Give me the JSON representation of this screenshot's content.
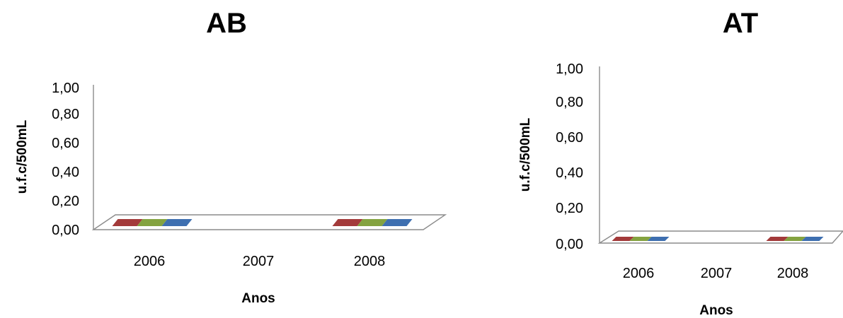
{
  "chart_data": [
    {
      "type": "bar",
      "title": "AB",
      "xlabel": "Anos",
      "ylabel": "u.f.c/500mL",
      "ylim": [
        0,
        1
      ],
      "yticks": [
        "0,00",
        "0,20",
        "0,40",
        "0,60",
        "0,80",
        "1,00"
      ],
      "categories": [
        "2006",
        "2007",
        "2008"
      ],
      "grid": false,
      "series": [
        {
          "values": [
            0,
            null,
            0
          ],
          "color": "#a33a3a"
        },
        {
          "values": [
            0,
            null,
            0
          ],
          "color": "#84a340"
        },
        {
          "values": [
            0,
            null,
            0
          ],
          "color": "#3e6fb0"
        }
      ]
    },
    {
      "type": "bar",
      "title": "AT",
      "xlabel": "Anos",
      "ylabel": "u.f.c/500mL",
      "ylim": [
        0,
        1
      ],
      "yticks": [
        "0,00",
        "0,20",
        "0,40",
        "0,60",
        "0,80",
        "1,00"
      ],
      "categories": [
        "2006",
        "2007",
        "2008"
      ],
      "grid": false,
      "series": [
        {
          "values": [
            0,
            null,
            0
          ],
          "color": "#a33a3a"
        },
        {
          "values": [
            0,
            null,
            0
          ],
          "color": "#84a340"
        },
        {
          "values": [
            0,
            null,
            0
          ],
          "color": "#3e6fb0"
        }
      ]
    }
  ]
}
